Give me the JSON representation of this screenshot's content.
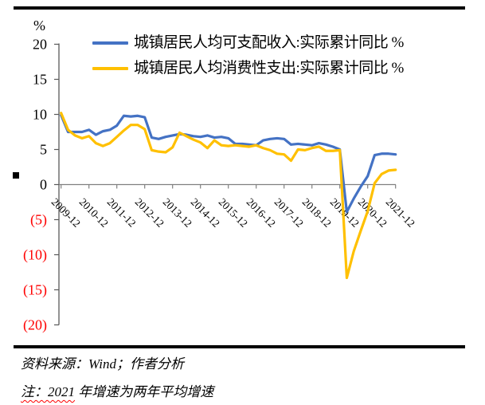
{
  "page": {
    "source_note": "资料来源：Wind；作者分析",
    "note_highlight": "注：2021",
    "note_rest": " 年增速为两年平均增速"
  },
  "colors": {
    "income_line": "#4472C4",
    "consumption_line": "#FFC000",
    "negative_tick_text": "#FF0000",
    "y_axis": "#595959",
    "x_axis": "#808080",
    "rule": "#000000"
  },
  "chart_data": {
    "type": "line",
    "title": "",
    "unit_label": "%",
    "xlabel": "",
    "ylabel": "%",
    "ylim": [
      -20,
      20
    ],
    "y_ticks": [
      20,
      15,
      10,
      5,
      0,
      -5,
      -10,
      -15,
      -20
    ],
    "negative_label_style": "parentheses-red",
    "grid": false,
    "legend_position": "top-left",
    "x_tick_labels": [
      "2009-12",
      "2010-12",
      "2011-12",
      "2012-12",
      "2013-12",
      "2014-12",
      "2015-12",
      "2016-12",
      "2017-12",
      "2018-12",
      "2019-12",
      "2020-12",
      "2021-12"
    ],
    "x": [
      "2009-12",
      "2010-03",
      "2010-06",
      "2010-09",
      "2010-12",
      "2011-03",
      "2011-06",
      "2011-09",
      "2011-12",
      "2012-03",
      "2012-06",
      "2012-09",
      "2012-12",
      "2013-03",
      "2013-06",
      "2013-09",
      "2013-12",
      "2014-03",
      "2014-06",
      "2014-09",
      "2014-12",
      "2015-03",
      "2015-06",
      "2015-09",
      "2015-12",
      "2016-03",
      "2016-06",
      "2016-09",
      "2016-12",
      "2017-03",
      "2017-06",
      "2017-09",
      "2017-12",
      "2018-03",
      "2018-06",
      "2018-09",
      "2018-12",
      "2019-03",
      "2019-06",
      "2019-09",
      "2019-12",
      "2020-03",
      "2020-06",
      "2020-09",
      "2020-12",
      "2021-03",
      "2021-06",
      "2021-09",
      "2021-12"
    ],
    "series": [
      {
        "name": "城镇居民人均可支配收入:实际累计同比 %",
        "color": "#4472C4",
        "values": [
          9.9,
          7.5,
          7.5,
          7.5,
          7.8,
          7.1,
          7.6,
          7.8,
          8.4,
          9.8,
          9.7,
          9.8,
          9.6,
          6.7,
          6.5,
          6.8,
          7.0,
          7.2,
          7.1,
          6.9,
          6.8,
          7.0,
          6.7,
          6.8,
          6.6,
          5.8,
          5.8,
          5.7,
          5.6,
          6.3,
          6.5,
          6.6,
          6.5,
          5.7,
          5.8,
          5.7,
          5.6,
          5.9,
          5.7,
          5.4,
          5.0,
          -3.9,
          -2.0,
          -0.3,
          1.2,
          4.2,
          4.4,
          4.4,
          4.3
        ]
      },
      {
        "name": "城镇居民人均消费性支出:实际累计同比 %",
        "color": "#FFC000",
        "values": [
          10.2,
          7.8,
          7.0,
          6.6,
          6.9,
          5.9,
          5.5,
          5.9,
          6.8,
          7.7,
          8.5,
          8.5,
          7.9,
          4.9,
          4.7,
          4.6,
          5.3,
          7.4,
          6.9,
          6.4,
          6.0,
          5.2,
          6.3,
          5.6,
          5.5,
          5.6,
          5.5,
          5.4,
          5.6,
          5.2,
          4.9,
          4.4,
          4.3,
          3.4,
          5.0,
          4.9,
          5.2,
          5.4,
          4.8,
          4.8,
          4.9,
          -13.3,
          -9.5,
          -6.6,
          -3.8,
          0.2,
          1.5,
          2.0,
          2.1
        ]
      }
    ]
  }
}
